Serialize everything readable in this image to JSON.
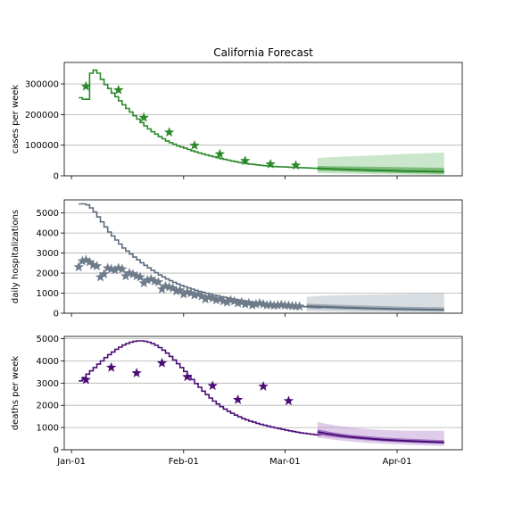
{
  "title": "California Forecast",
  "colors": {
    "cases": "#2a8a2a",
    "hosp": "#5d6d7e",
    "hosp_star": "#6e7b8b",
    "deaths": "#4b0d75",
    "grid": "#b0b0b0"
  },
  "chart_data": [
    {
      "type": "line",
      "name": "cases",
      "title": "California Forecast",
      "xlabel": "",
      "ylabel": "cases per week",
      "ylim": [
        0,
        370000
      ],
      "yticks": [
        0,
        100000,
        200000,
        300000
      ],
      "ytick_labels": [
        "0",
        "100000",
        "200000",
        "300000"
      ],
      "xlim": [
        -2,
        108
      ],
      "xticks": [
        0,
        31,
        59,
        90
      ],
      "xtick_labels": [],
      "grid": "horizontal",
      "series": [
        {
          "kind": "step",
          "x": [
            2,
            3,
            4,
            5,
            6,
            7,
            8,
            9,
            10,
            11,
            12,
            13,
            14,
            15,
            16,
            17,
            18,
            19,
            20,
            21,
            22,
            23,
            24,
            25,
            26,
            27,
            28,
            29,
            30,
            31,
            32,
            33,
            34,
            35,
            36,
            37,
            38,
            39,
            40,
            41,
            42,
            43,
            44,
            45,
            46,
            47,
            48,
            49,
            50,
            51,
            52,
            53,
            54,
            55,
            56,
            57,
            58,
            59,
            60,
            61,
            62,
            63,
            64,
            65,
            66,
            67,
            68
          ],
          "y": [
            255000,
            250000,
            250000,
            335000,
            345000,
            335000,
            315000,
            298000,
            285000,
            270000,
            258000,
            245000,
            232000,
            220000,
            208000,
            196000,
            185000,
            174000,
            163000,
            153000,
            144000,
            136000,
            128000,
            121000,
            114000,
            108000,
            103000,
            98000,
            94000,
            90000,
            86000,
            82000,
            78000,
            74500,
            71000,
            68000,
            65000,
            62000,
            59000,
            56000,
            53500,
            51000,
            48500,
            46000,
            44000,
            42000,
            40000,
            38500,
            37000,
            35500,
            34000,
            33000,
            32000,
            31000,
            30000,
            29500,
            29000,
            28500,
            28000,
            27500,
            27000,
            26500,
            26000,
            25500,
            25000,
            24500,
            24000
          ]
        },
        {
          "kind": "stars",
          "x": [
            4,
            13,
            20,
            27,
            34,
            41,
            48,
            55,
            62
          ],
          "y": [
            292000,
            280000,
            190000,
            142000,
            99000,
            71000,
            49000,
            38000,
            34000
          ]
        },
        {
          "kind": "forecast",
          "x": [
            68,
            71,
            74,
            77,
            80,
            83,
            86,
            89,
            92,
            95,
            98,
            101,
            103
          ],
          "median": [
            24000,
            23000,
            21500,
            20500,
            19500,
            18500,
            17500,
            16500,
            15500,
            15000,
            14500,
            14000,
            13500
          ],
          "q25": [
            16000,
            15500,
            14500,
            13500,
            12500,
            11500,
            10500,
            9500,
            8500,
            8000,
            7500,
            7000,
            6500
          ],
          "q75": [
            32000,
            31500,
            31000,
            30500,
            30000,
            29500,
            29000,
            28500,
            28000,
            27500,
            27000,
            26500,
            26000
          ],
          "q05": [
            8000,
            7500,
            7000,
            6500,
            6000,
            5500,
            5000,
            4500,
            4000,
            3500,
            3000,
            2500,
            2000
          ],
          "q95": [
            58000,
            60000,
            62000,
            63500,
            65000,
            66500,
            68000,
            69500,
            71000,
            72500,
            74000,
            75000,
            76000
          ]
        }
      ]
    },
    {
      "type": "line",
      "name": "hospitalizations",
      "xlabel": "",
      "ylabel": "daily hospitalizations",
      "ylim": [
        0,
        5650
      ],
      "yticks": [
        0,
        1000,
        2000,
        3000,
        4000,
        5000
      ],
      "ytick_labels": [
        "0",
        "1000",
        "2000",
        "3000",
        "4000",
        "5000"
      ],
      "xlim": [
        -2,
        108
      ],
      "xticks": [
        0,
        31,
        59,
        90
      ],
      "xtick_labels": [],
      "grid": "horizontal",
      "series": [
        {
          "kind": "step",
          "x": [
            2,
            3,
            4,
            5,
            6,
            7,
            8,
            9,
            10,
            11,
            12,
            13,
            14,
            15,
            16,
            17,
            18,
            19,
            20,
            21,
            22,
            23,
            24,
            25,
            26,
            27,
            28,
            29,
            30,
            31,
            32,
            33,
            34,
            35,
            36,
            37,
            38,
            39,
            40,
            41,
            42,
            43,
            44,
            45,
            46,
            47,
            48,
            49,
            50,
            51,
            52,
            53,
            54,
            55,
            56,
            57,
            58,
            59,
            60,
            61,
            62,
            63,
            64,
            65,
            66,
            67,
            68
          ],
          "y": [
            5450,
            5450,
            5400,
            5250,
            5050,
            4800,
            4550,
            4300,
            4050,
            3850,
            3650,
            3450,
            3250,
            3100,
            2950,
            2800,
            2660,
            2520,
            2390,
            2260,
            2140,
            2020,
            1910,
            1810,
            1710,
            1620,
            1540,
            1460,
            1390,
            1320,
            1260,
            1200,
            1140,
            1090,
            1040,
            990,
            950,
            905,
            865,
            825,
            790,
            755,
            720,
            690,
            660,
            630,
            605,
            580,
            555,
            535,
            515,
            495,
            475,
            460,
            445,
            430,
            415,
            400,
            385,
            370,
            355,
            340,
            325,
            310,
            295,
            280,
            265
          ]
        },
        {
          "kind": "stars",
          "x": [
            2,
            3,
            4,
            5,
            6,
            7,
            8,
            9,
            10,
            11,
            12,
            13,
            14,
            15,
            16,
            17,
            18,
            19,
            20,
            21,
            22,
            23,
            24,
            25,
            26,
            27,
            28,
            29,
            30,
            31,
            32,
            33,
            34,
            35,
            36,
            37,
            38,
            39,
            40,
            41,
            42,
            43,
            44,
            45,
            46,
            47,
            48,
            49,
            50,
            51,
            52,
            53,
            54,
            55,
            56,
            57,
            58,
            59,
            60,
            61,
            62,
            63
          ],
          "y": [
            2300,
            2600,
            2650,
            2550,
            2400,
            2350,
            1800,
            1950,
            2250,
            2200,
            2150,
            2250,
            2200,
            1850,
            2000,
            1950,
            1850,
            1800,
            1500,
            1650,
            1700,
            1600,
            1550,
            1200,
            1350,
            1300,
            1250,
            1100,
            1150,
            950,
            1050,
            1000,
            900,
            950,
            850,
            700,
            800,
            750,
            650,
            700,
            600,
            550,
            650,
            600,
            500,
            550,
            450,
            500,
            400,
            450,
            500,
            450,
            400,
            420,
            380,
            400,
            420,
            390,
            380,
            360,
            350,
            340
          ]
        },
        {
          "kind": "forecast",
          "x": [
            65,
            68,
            71,
            74,
            77,
            80,
            83,
            86,
            89,
            92,
            95,
            98,
            101,
            103
          ],
          "median": [
            350,
            330,
            310,
            290,
            270,
            255,
            240,
            225,
            210,
            200,
            190,
            180,
            175,
            170
          ],
          "q25": [
            230,
            215,
            200,
            185,
            170,
            160,
            150,
            140,
            130,
            120,
            115,
            110,
            105,
            100
          ],
          "q75": [
            480,
            460,
            440,
            420,
            400,
            385,
            370,
            355,
            340,
            325,
            315,
            305,
            300,
            295
          ],
          "q05": [
            100,
            90,
            80,
            70,
            60,
            55,
            50,
            45,
            40,
            35,
            30,
            28,
            25,
            22
          ],
          "q95": [
            820,
            860,
            880,
            900,
            910,
            920,
            930,
            940,
            950,
            960,
            980,
            990,
            1000,
            1000
          ]
        }
      ]
    },
    {
      "type": "line",
      "name": "deaths",
      "xlabel": "",
      "ylabel": "deaths per week",
      "ylim": [
        0,
        5100
      ],
      "yticks": [
        0,
        1000,
        2000,
        3000,
        4000,
        5000
      ],
      "ytick_labels": [
        "0",
        "1000",
        "2000",
        "3000",
        "4000",
        "5000"
      ],
      "xlim": [
        -2,
        108
      ],
      "xticks": [
        0,
        31,
        59,
        90
      ],
      "xtick_labels": [
        "Jan-01",
        "Feb-01",
        "Mar-01",
        "Apr-01"
      ],
      "grid": "horizontal",
      "series": [
        {
          "kind": "step",
          "x": [
            2,
            3,
            4,
            5,
            6,
            7,
            8,
            9,
            10,
            11,
            12,
            13,
            14,
            15,
            16,
            17,
            18,
            19,
            20,
            21,
            22,
            23,
            24,
            25,
            26,
            27,
            28,
            29,
            30,
            31,
            32,
            33,
            34,
            35,
            36,
            37,
            38,
            39,
            40,
            41,
            42,
            43,
            44,
            45,
            46,
            47,
            48,
            49,
            50,
            51,
            52,
            53,
            54,
            55,
            56,
            57,
            58,
            59,
            60,
            61,
            62,
            63,
            64,
            65,
            66,
            67,
            68
          ],
          "y": [
            3100,
            3250,
            3400,
            3550,
            3700,
            3850,
            4000,
            4150,
            4280,
            4400,
            4520,
            4620,
            4710,
            4780,
            4840,
            4880,
            4900,
            4900,
            4880,
            4840,
            4780,
            4700,
            4600,
            4480,
            4350,
            4200,
            4040,
            3870,
            3700,
            3520,
            3340,
            3160,
            2980,
            2810,
            2640,
            2480,
            2330,
            2190,
            2060,
            1940,
            1830,
            1730,
            1640,
            1560,
            1480,
            1410,
            1350,
            1290,
            1240,
            1190,
            1140,
            1100,
            1060,
            1020,
            985,
            950,
            915,
            880,
            850,
            820,
            790,
            760,
            740,
            720,
            700,
            680,
            660
          ]
        },
        {
          "kind": "stars",
          "x": [
            4,
            11,
            18,
            25,
            32,
            39,
            46,
            53,
            60
          ],
          "y": [
            3150,
            3700,
            3450,
            3900,
            3280,
            2880,
            2250,
            2850,
            2200
          ]
        },
        {
          "kind": "forecast",
          "x": [
            68,
            71,
            74,
            77,
            80,
            83,
            86,
            89,
            92,
            95,
            98,
            101,
            103
          ],
          "median": [
            800,
            710,
            640,
            580,
            530,
            490,
            455,
            425,
            400,
            380,
            360,
            340,
            330
          ],
          "q25": [
            680,
            600,
            540,
            490,
            450,
            410,
            380,
            355,
            330,
            310,
            295,
            280,
            270
          ],
          "q75": [
            920,
            820,
            740,
            680,
            630,
            590,
            555,
            525,
            500,
            480,
            460,
            440,
            430
          ],
          "q05": [
            550,
            480,
            420,
            370,
            330,
            300,
            270,
            250,
            230,
            210,
            195,
            180,
            170
          ],
          "q95": [
            1250,
            1150,
            1070,
            1010,
            960,
            920,
            890,
            870,
            860,
            850,
            850,
            850,
            850
          ]
        }
      ]
    }
  ]
}
